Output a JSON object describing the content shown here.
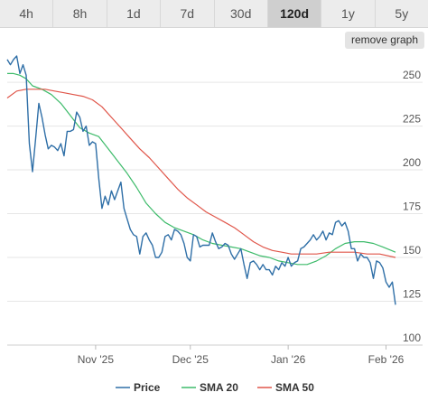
{
  "tabs": [
    {
      "label": "4h"
    },
    {
      "label": "8h"
    },
    {
      "label": "1d"
    },
    {
      "label": "7d"
    },
    {
      "label": "30d"
    },
    {
      "label": "120d",
      "active": true
    },
    {
      "label": "1y"
    },
    {
      "label": "5y"
    }
  ],
  "remove_graph_label": "remove graph",
  "chart_data": {
    "type": "line",
    "ylim": [
      100,
      265
    ],
    "x_range": [
      "2025-10-04",
      "2026-02-04"
    ],
    "y_ticks": [
      100,
      125,
      150,
      175,
      200,
      225,
      250
    ],
    "x_ticks": [
      {
        "label": "Nov '25",
        "date": "2025-11-01"
      },
      {
        "label": "Dec '25",
        "date": "2025-12-01"
      },
      {
        "label": "Jan '26",
        "date": "2026-01-01"
      },
      {
        "label": "Feb '26",
        "date": "2026-02-01"
      }
    ],
    "grid": true,
    "legend_position": "bottom",
    "series": [
      {
        "name": "Price",
        "color": "#2f6fa7",
        "points": [
          [
            "2025-10-04",
            263
          ],
          [
            "2025-10-05",
            260
          ],
          [
            "2025-10-06",
            263
          ],
          [
            "2025-10-07",
            265
          ],
          [
            "2025-10-08",
            255
          ],
          [
            "2025-10-09",
            260
          ],
          [
            "2025-10-10",
            254
          ],
          [
            "2025-10-11",
            215
          ],
          [
            "2025-10-12",
            199
          ],
          [
            "2025-10-13",
            218
          ],
          [
            "2025-10-14",
            238
          ],
          [
            "2025-10-15",
            230
          ],
          [
            "2025-10-16",
            220
          ],
          [
            "2025-10-17",
            212
          ],
          [
            "2025-10-18",
            214
          ],
          [
            "2025-10-19",
            213
          ],
          [
            "2025-10-20",
            211
          ],
          [
            "2025-10-21",
            215
          ],
          [
            "2025-10-22",
            208
          ],
          [
            "2025-10-23",
            222
          ],
          [
            "2025-10-24",
            222
          ],
          [
            "2025-10-25",
            223
          ],
          [
            "2025-10-26",
            233
          ],
          [
            "2025-10-27",
            230
          ],
          [
            "2025-10-28",
            222
          ],
          [
            "2025-10-29",
            225
          ],
          [
            "2025-10-30",
            214
          ],
          [
            "2025-10-31",
            216
          ],
          [
            "2025-11-01",
            215
          ],
          [
            "2025-11-02",
            195
          ],
          [
            "2025-11-03",
            178
          ],
          [
            "2025-11-04",
            185
          ],
          [
            "2025-11-05",
            180
          ],
          [
            "2025-11-06",
            188
          ],
          [
            "2025-11-07",
            183
          ],
          [
            "2025-11-08",
            188
          ],
          [
            "2025-11-09",
            193
          ],
          [
            "2025-11-10",
            178
          ],
          [
            "2025-11-11",
            172
          ],
          [
            "2025-11-12",
            166
          ],
          [
            "2025-11-13",
            163
          ],
          [
            "2025-11-14",
            162
          ],
          [
            "2025-11-15",
            152
          ],
          [
            "2025-11-16",
            162
          ],
          [
            "2025-11-17",
            164
          ],
          [
            "2025-11-18",
            160
          ],
          [
            "2025-11-19",
            157
          ],
          [
            "2025-11-20",
            150
          ],
          [
            "2025-11-21",
            150
          ],
          [
            "2025-11-22",
            153
          ],
          [
            "2025-11-23",
            162
          ],
          [
            "2025-11-24",
            163
          ],
          [
            "2025-11-25",
            160
          ],
          [
            "2025-11-26",
            166
          ],
          [
            "2025-11-27",
            165
          ],
          [
            "2025-11-28",
            163
          ],
          [
            "2025-11-29",
            158
          ],
          [
            "2025-11-30",
            150
          ],
          [
            "2025-12-01",
            148
          ],
          [
            "2025-12-02",
            163
          ],
          [
            "2025-12-03",
            162
          ],
          [
            "2025-12-04",
            156
          ],
          [
            "2025-12-05",
            157
          ],
          [
            "2025-12-06",
            157
          ],
          [
            "2025-12-07",
            157
          ],
          [
            "2025-12-08",
            164
          ],
          [
            "2025-12-09",
            159
          ],
          [
            "2025-12-10",
            155
          ],
          [
            "2025-12-11",
            156
          ],
          [
            "2025-12-12",
            158
          ],
          [
            "2025-12-13",
            157
          ],
          [
            "2025-12-14",
            152
          ],
          [
            "2025-12-15",
            149
          ],
          [
            "2025-12-16",
            152
          ],
          [
            "2025-12-17",
            155
          ],
          [
            "2025-12-18",
            146
          ],
          [
            "2025-12-19",
            138
          ],
          [
            "2025-12-20",
            147
          ],
          [
            "2025-12-21",
            148
          ],
          [
            "2025-12-22",
            146
          ],
          [
            "2025-12-23",
            143
          ],
          [
            "2025-12-24",
            146
          ],
          [
            "2025-12-25",
            143
          ],
          [
            "2025-12-26",
            143
          ],
          [
            "2025-12-27",
            140
          ],
          [
            "2025-12-28",
            145
          ],
          [
            "2025-12-29",
            143
          ],
          [
            "2025-12-30",
            147
          ],
          [
            "2025-12-31",
            145
          ],
          [
            "2026-01-01",
            150
          ],
          [
            "2026-01-02",
            145
          ],
          [
            "2026-01-03",
            147
          ],
          [
            "2026-01-04",
            148
          ],
          [
            "2026-01-05",
            155
          ],
          [
            "2026-01-06",
            156
          ],
          [
            "2026-01-07",
            158
          ],
          [
            "2026-01-08",
            160
          ],
          [
            "2026-01-09",
            163
          ],
          [
            "2026-01-10",
            160
          ],
          [
            "2026-01-11",
            162
          ],
          [
            "2026-01-12",
            165
          ],
          [
            "2026-01-13",
            160
          ],
          [
            "2026-01-14",
            164
          ],
          [
            "2026-01-15",
            163
          ],
          [
            "2026-01-16",
            170
          ],
          [
            "2026-01-17",
            171
          ],
          [
            "2026-01-18",
            168
          ],
          [
            "2026-01-19",
            170
          ],
          [
            "2026-01-20",
            165
          ],
          [
            "2026-01-21",
            155
          ],
          [
            "2026-01-22",
            155
          ],
          [
            "2026-01-23",
            148
          ],
          [
            "2026-01-24",
            152
          ],
          [
            "2026-01-25",
            150
          ],
          [
            "2026-01-26",
            150
          ],
          [
            "2026-01-27",
            147
          ],
          [
            "2026-01-28",
            138
          ],
          [
            "2026-01-29",
            148
          ],
          [
            "2026-01-30",
            147
          ],
          [
            "2026-01-31",
            144
          ],
          [
            "2026-02-01",
            136
          ],
          [
            "2026-02-02",
            133
          ],
          [
            "2026-02-03",
            136
          ],
          [
            "2026-02-04",
            123
          ]
        ]
      },
      {
        "name": "SMA 20",
        "color": "#3dbb6a",
        "points": [
          [
            "2025-10-04",
            255
          ],
          [
            "2025-10-06",
            255
          ],
          [
            "2025-10-08",
            254
          ],
          [
            "2025-10-10",
            252
          ],
          [
            "2025-10-12",
            248
          ],
          [
            "2025-10-15",
            246
          ],
          [
            "2025-10-18",
            243
          ],
          [
            "2025-10-21",
            238
          ],
          [
            "2025-10-24",
            231
          ],
          [
            "2025-10-27",
            224
          ],
          [
            "2025-10-30",
            221
          ],
          [
            "2025-11-02",
            219
          ],
          [
            "2025-11-05",
            212
          ],
          [
            "2025-11-08",
            205
          ],
          [
            "2025-11-11",
            198
          ],
          [
            "2025-11-14",
            190
          ],
          [
            "2025-11-17",
            181
          ],
          [
            "2025-11-20",
            175
          ],
          [
            "2025-11-23",
            170
          ],
          [
            "2025-11-26",
            167
          ],
          [
            "2025-11-29",
            165
          ],
          [
            "2025-12-02",
            163
          ],
          [
            "2025-12-05",
            160
          ],
          [
            "2025-12-08",
            158
          ],
          [
            "2025-12-11",
            157
          ],
          [
            "2025-12-14",
            156
          ],
          [
            "2025-12-17",
            155
          ],
          [
            "2025-12-20",
            153
          ],
          [
            "2025-12-23",
            151
          ],
          [
            "2025-12-26",
            150
          ],
          [
            "2025-12-29",
            148
          ],
          [
            "2026-01-01",
            147
          ],
          [
            "2026-01-04",
            146
          ],
          [
            "2026-01-07",
            146
          ],
          [
            "2026-01-10",
            148
          ],
          [
            "2026-01-13",
            151
          ],
          [
            "2026-01-16",
            155
          ],
          [
            "2026-01-19",
            158
          ],
          [
            "2026-01-22",
            159
          ],
          [
            "2026-01-25",
            159
          ],
          [
            "2026-01-28",
            158
          ],
          [
            "2026-01-31",
            156
          ],
          [
            "2026-02-04",
            153
          ]
        ]
      },
      {
        "name": "SMA 50",
        "color": "#e0564a",
        "points": [
          [
            "2025-10-04",
            241
          ],
          [
            "2025-10-07",
            245
          ],
          [
            "2025-10-10",
            246
          ],
          [
            "2025-10-13",
            246
          ],
          [
            "2025-10-16",
            246
          ],
          [
            "2025-10-19",
            245
          ],
          [
            "2025-10-22",
            244
          ],
          [
            "2025-10-25",
            243
          ],
          [
            "2025-10-28",
            242
          ],
          [
            "2025-10-31",
            240
          ],
          [
            "2025-11-03",
            236
          ],
          [
            "2025-11-06",
            230
          ],
          [
            "2025-11-09",
            224
          ],
          [
            "2025-11-12",
            218
          ],
          [
            "2025-11-15",
            212
          ],
          [
            "2025-11-18",
            207
          ],
          [
            "2025-11-21",
            201
          ],
          [
            "2025-11-24",
            195
          ],
          [
            "2025-11-27",
            189
          ],
          [
            "2025-11-30",
            184
          ],
          [
            "2025-12-03",
            180
          ],
          [
            "2025-12-06",
            176
          ],
          [
            "2025-12-09",
            173
          ],
          [
            "2025-12-12",
            170
          ],
          [
            "2025-12-15",
            167
          ],
          [
            "2025-12-18",
            163
          ],
          [
            "2025-12-21",
            159
          ],
          [
            "2025-12-24",
            156
          ],
          [
            "2025-12-27",
            154
          ],
          [
            "2025-12-30",
            153
          ],
          [
            "2026-01-02",
            152
          ],
          [
            "2026-01-06",
            152
          ],
          [
            "2026-01-10",
            152
          ],
          [
            "2026-01-14",
            153
          ],
          [
            "2026-01-18",
            153
          ],
          [
            "2026-01-22",
            153
          ],
          [
            "2026-01-26",
            152
          ],
          [
            "2026-01-30",
            152
          ],
          [
            "2026-02-04",
            150
          ]
        ]
      }
    ]
  }
}
